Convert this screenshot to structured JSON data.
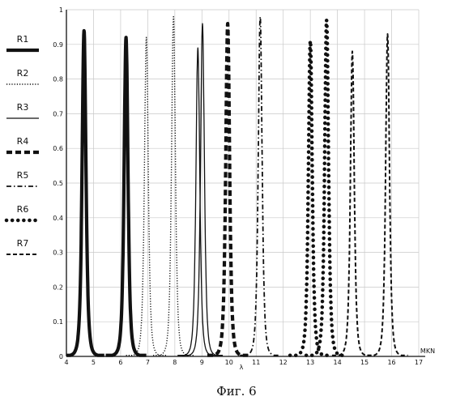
{
  "chart_data": {
    "type": "line",
    "caption": "Фиг. 6",
    "xlabel": "λ",
    "xunit": "MKN",
    "xlim": [
      4,
      17
    ],
    "ylim": [
      0,
      1
    ],
    "x_ticks": [
      "4",
      "5",
      "6",
      "7",
      "8",
      "9",
      "10",
      "11",
      "12",
      "13",
      "14",
      "15",
      "16",
      "17"
    ],
    "y_ticks": [
      "0",
      "0.1",
      "0.2",
      "0.3",
      "0.4",
      "0.5",
      "0.6",
      "0.7",
      "0.8",
      "0.9",
      "1"
    ],
    "grid": true,
    "legend_position": "left",
    "series": [
      {
        "name": "R1",
        "style": "thick-solid",
        "peaks": [
          {
            "center": 4.65,
            "height": 0.94
          },
          {
            "center": 6.2,
            "height": 0.92
          }
        ]
      },
      {
        "name": "R2",
        "style": "fine-dotted",
        "peaks": [
          {
            "center": 6.95,
            "height": 0.92
          },
          {
            "center": 7.95,
            "height": 0.98
          }
        ]
      },
      {
        "name": "R3",
        "style": "thin-solid",
        "peaks": [
          {
            "center": 8.85,
            "height": 0.89
          },
          {
            "center": 9.02,
            "height": 0.96
          }
        ]
      },
      {
        "name": "R4",
        "style": "thick-dashed",
        "peaks": [
          {
            "center": 9.95,
            "height": 0.96
          }
        ]
      },
      {
        "name": "R5",
        "style": "dash-dot",
        "peaks": [
          {
            "center": 11.15,
            "height": 0.98
          }
        ]
      },
      {
        "name": "R6",
        "style": "heavy-dotted",
        "peaks": [
          {
            "center": 13.0,
            "height": 0.91
          },
          {
            "center": 13.6,
            "height": 0.97
          }
        ]
      },
      {
        "name": "R7",
        "style": "dashed",
        "peaks": [
          {
            "center": 14.55,
            "height": 0.88
          },
          {
            "center": 15.85,
            "height": 0.93
          }
        ]
      }
    ]
  }
}
